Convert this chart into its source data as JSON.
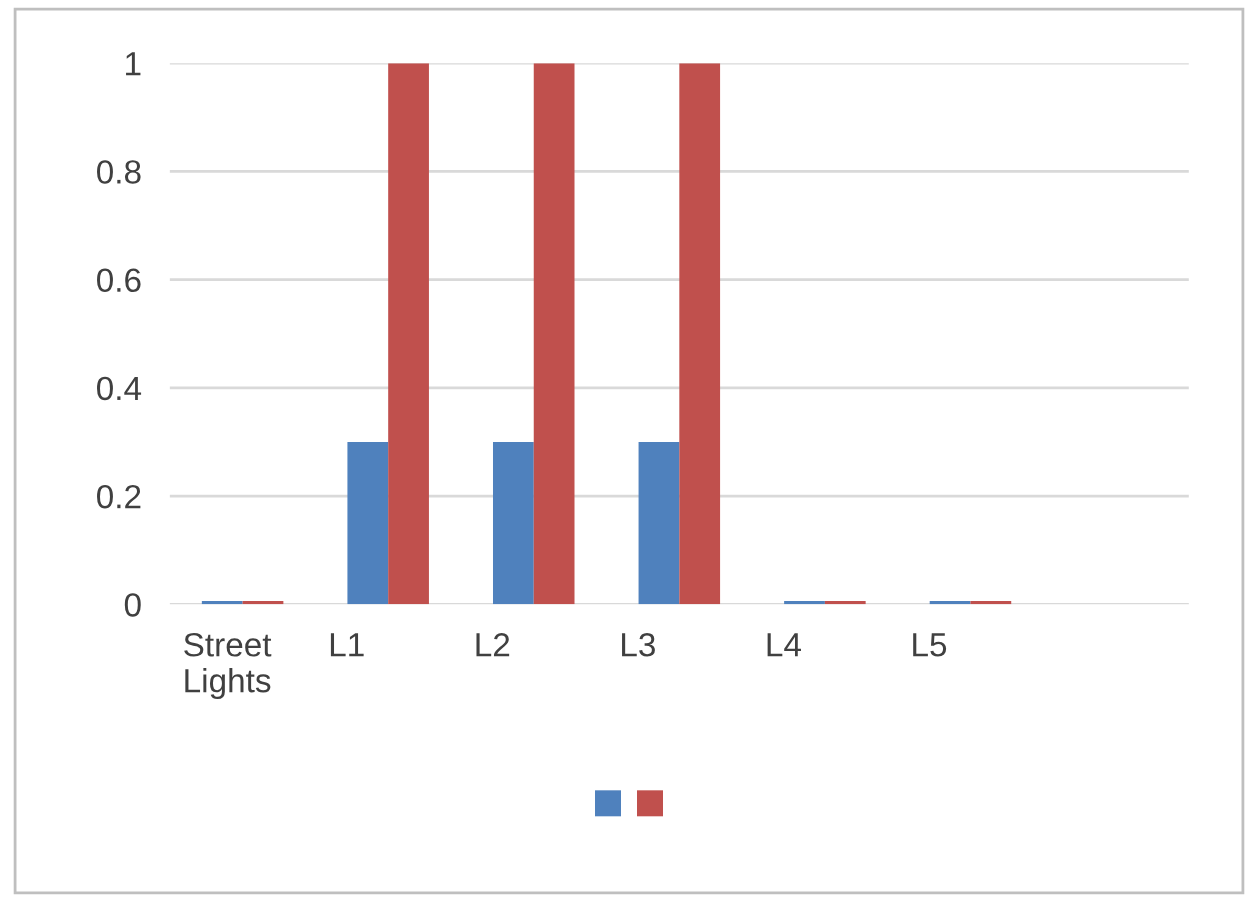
{
  "chart_data": {
    "type": "bar",
    "categories": [
      "Street\nLights",
      "L1",
      "L2",
      "L3",
      "L4",
      "L5",
      null
    ],
    "series": [
      {
        "color": "#4f81bd",
        "values": [
          0,
          0.3,
          0.3,
          0.3,
          0,
          0,
          null
        ]
      },
      {
        "color": "#c0504d",
        "values": [
          0,
          1,
          1,
          1,
          0,
          0,
          null
        ]
      }
    ],
    "ylim": [
      0,
      1
    ],
    "yticks": [
      0,
      0.2,
      0.4,
      0.6,
      0.8,
      1
    ],
    "grid": "y"
  }
}
